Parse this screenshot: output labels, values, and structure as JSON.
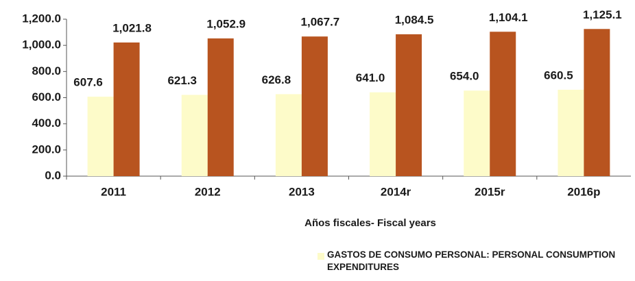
{
  "chart_data": {
    "type": "bar",
    "categories": [
      "2011",
      "2012",
      "2013",
      "2014r",
      "2015r",
      "2016p"
    ],
    "series": [
      {
        "name": "GASTOS DE CONSUMO PERSONAL:  PERSONAL CONSUMPTION EXPENDITURES",
        "color": "#fdfbc9",
        "values": [
          607.6,
          621.3,
          626.8,
          641.0,
          654.0,
          660.5
        ],
        "value_labels": [
          "607.6",
          "621.3",
          "626.8",
          "641.0",
          "654.0",
          "660.5"
        ]
      },
      {
        "color": "#b8541f",
        "values": [
          1021.8,
          1052.9,
          1067.7,
          1084.5,
          1104.1,
          1125.1
        ],
        "value_labels": [
          "1,021.8",
          "1,052.9",
          "1,067.7",
          "1,084.5",
          "1,104.1",
          "1,125.1"
        ]
      }
    ],
    "xlabel": "Años fiscales- Fiscal years",
    "ylim": [
      0,
      1200
    ],
    "yticks": [
      {
        "value": 0,
        "label": "0.0"
      },
      {
        "value": 200,
        "label": "200.0"
      },
      {
        "value": 400,
        "label": "400.0"
      },
      {
        "value": 600,
        "label": "600.0"
      },
      {
        "value": 800,
        "label": "800.0"
      },
      {
        "value": 1000,
        "label": "1,000.0"
      },
      {
        "value": 1200,
        "label": "1,200.0"
      }
    ],
    "grid": false
  }
}
